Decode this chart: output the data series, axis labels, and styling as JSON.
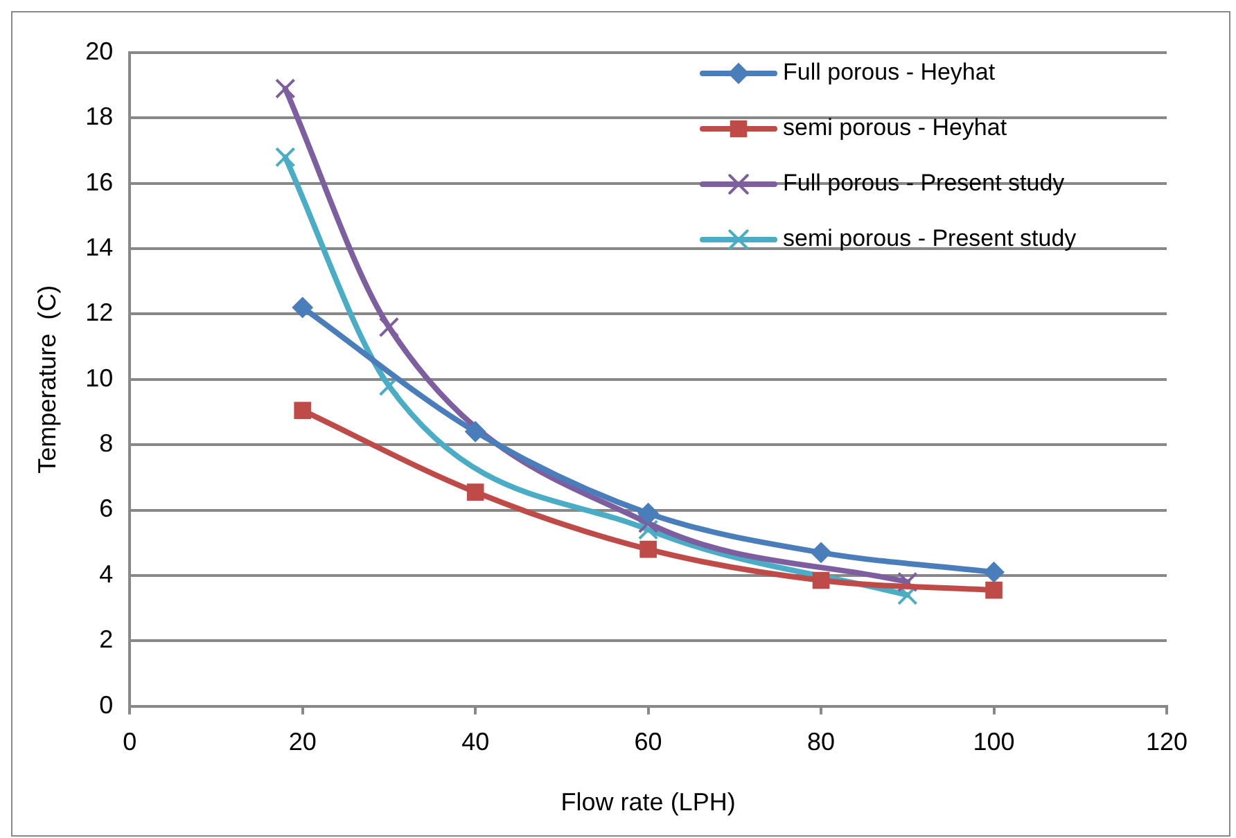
{
  "chart_data": {
    "type": "line",
    "xlabel": "Flow rate (LPH)",
    "ylabel": "Temperature  (C)",
    "xlim": [
      0,
      120
    ],
    "xticks": [
      0,
      20,
      40,
      60,
      80,
      100,
      120
    ],
    "ylim": [
      0,
      20
    ],
    "yticks": [
      0,
      2,
      4,
      6,
      8,
      10,
      12,
      14,
      16,
      18,
      20
    ],
    "grid": "y",
    "legend": "top right",
    "series": [
      {
        "name": "Full porous - Heyhat",
        "color": "#4a7ebb",
        "marker": "diamond",
        "x": [
          20,
          40,
          60,
          80,
          100
        ],
        "values": [
          12.2,
          8.4,
          5.9,
          4.7,
          4.1
        ]
      },
      {
        "name": "semi porous - Heyhat",
        "color": "#be4b48",
        "marker": "square",
        "x": [
          20,
          40,
          60,
          80,
          100
        ],
        "values": [
          9.05,
          6.55,
          4.8,
          3.85,
          3.55
        ]
      },
      {
        "name": "Full porous - Present study",
        "color": "#7d5fa0",
        "marker": "cross",
        "x": [
          18,
          30,
          60,
          90
        ],
        "values": [
          18.9,
          11.6,
          5.6,
          3.8
        ]
      },
      {
        "name": "semi porous - Present study",
        "color": "#4bacc6",
        "marker": "cross",
        "x": [
          18,
          30,
          60,
          90
        ],
        "values": [
          16.8,
          9.8,
          5.4,
          3.4
        ]
      }
    ]
  }
}
